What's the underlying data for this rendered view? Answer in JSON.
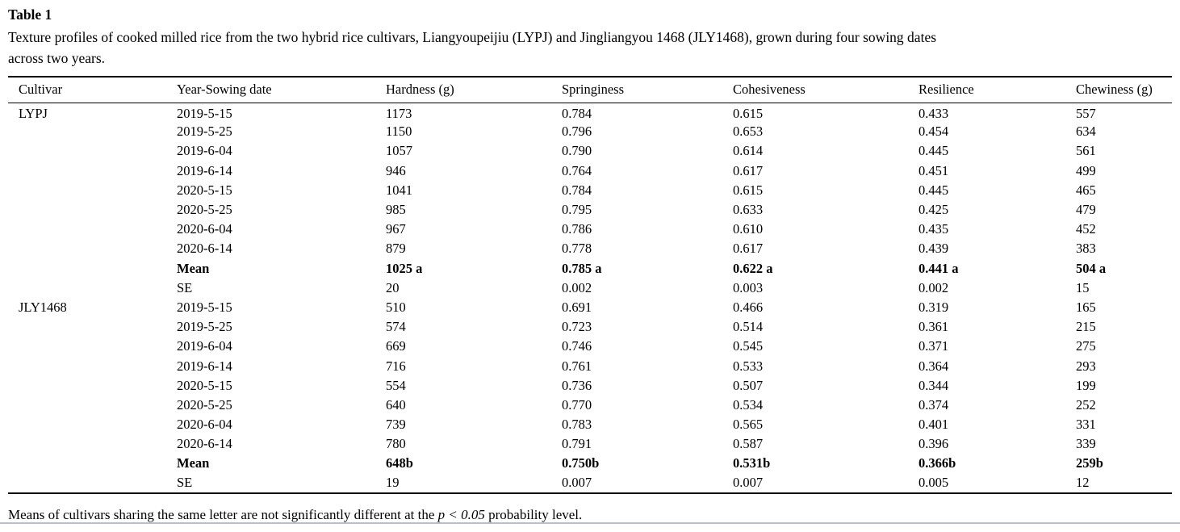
{
  "page": {
    "title": "Table 1",
    "caption_lines": [
      "Texture profiles of cooked milled rice from the two hybrid rice cultivars, Liangyoupeijiu (LYPJ) and Jingliangyou 1468 (JLY1468), grown during four sowing dates",
      "across two years."
    ]
  },
  "table": {
    "headers": [
      "Cultivar",
      "Year-Sowing date",
      "Hardness (g)",
      "Springiness",
      "Cohesiveness",
      "Resilience",
      "Chewiness (g)"
    ],
    "rows": [
      {
        "cells": [
          "LYPJ",
          "2019-5-15",
          "1173",
          "0.784",
          "0.615",
          "0.433",
          "557"
        ],
        "bold": false
      },
      {
        "cells": [
          "",
          "2019-5-25",
          "1150",
          "0.796",
          "0.653",
          "0.454",
          "634"
        ],
        "bold": false
      },
      {
        "cells": [
          "",
          "2019-6-04",
          "1057",
          "0.790",
          "0.614",
          "0.445",
          "561"
        ],
        "bold": false
      },
      {
        "cells": [
          "",
          "2019-6-14",
          "946",
          "0.764",
          "0.617",
          "0.451",
          "499"
        ],
        "bold": false
      },
      {
        "cells": [
          "",
          "2020-5-15",
          "1041",
          "0.784",
          "0.615",
          "0.445",
          "465"
        ],
        "bold": false
      },
      {
        "cells": [
          "",
          "2020-5-25",
          "985",
          "0.795",
          "0.633",
          "0.425",
          "479"
        ],
        "bold": false
      },
      {
        "cells": [
          "",
          "2020-6-04",
          "967",
          "0.786",
          "0.610",
          "0.435",
          "452"
        ],
        "bold": false
      },
      {
        "cells": [
          "",
          "2020-6-14",
          "879",
          "0.778",
          "0.617",
          "0.439",
          "383"
        ],
        "bold": false
      },
      {
        "cells": [
          "",
          "Mean",
          "1025 a",
          "0.785 a",
          "0.622 a",
          "0.441 a",
          "504 a"
        ],
        "bold": true
      },
      {
        "cells": [
          "",
          "SE",
          "20",
          "0.002",
          "0.003",
          "0.002",
          "15"
        ],
        "bold": false
      },
      {
        "cells": [
          "JLY1468",
          "2019-5-15",
          "510",
          "0.691",
          "0.466",
          "0.319",
          "165"
        ],
        "bold": false
      },
      {
        "cells": [
          "",
          "2019-5-25",
          "574",
          "0.723",
          "0.514",
          "0.361",
          "215"
        ],
        "bold": false
      },
      {
        "cells": [
          "",
          "2019-6-04",
          "669",
          "0.746",
          "0.545",
          "0.371",
          "275"
        ],
        "bold": false
      },
      {
        "cells": [
          "",
          "2019-6-14",
          "716",
          "0.761",
          "0.533",
          "0.364",
          "293"
        ],
        "bold": false
      },
      {
        "cells": [
          "",
          "2020-5-15",
          "554",
          "0.736",
          "0.507",
          "0.344",
          "199"
        ],
        "bold": false
      },
      {
        "cells": [
          "",
          "2020-5-25",
          "640",
          "0.770",
          "0.534",
          "0.374",
          "252"
        ],
        "bold": false
      },
      {
        "cells": [
          "",
          "2020-6-04",
          "739",
          "0.783",
          "0.565",
          "0.401",
          "331"
        ],
        "bold": false
      },
      {
        "cells": [
          "",
          "2020-6-14",
          "780",
          "0.791",
          "0.587",
          "0.396",
          "339"
        ],
        "bold": false
      },
      {
        "cells": [
          "",
          "Mean",
          "648b",
          "0.750b",
          "0.531b",
          "0.366b",
          "259b"
        ],
        "bold": true
      },
      {
        "cells": [
          "",
          "SE",
          "19",
          "0.007",
          "0.007",
          "0.005",
          "12"
        ],
        "bold": false
      }
    ],
    "footnote": {
      "pre": "Means of cultivars sharing the same letter are not significantly different at the ",
      "italic": "p < 0.05",
      "post": " probability level."
    }
  },
  "colors": {
    "text": "#000000",
    "rule": "#000000",
    "cropped_edge": "#b9c0cc"
  }
}
